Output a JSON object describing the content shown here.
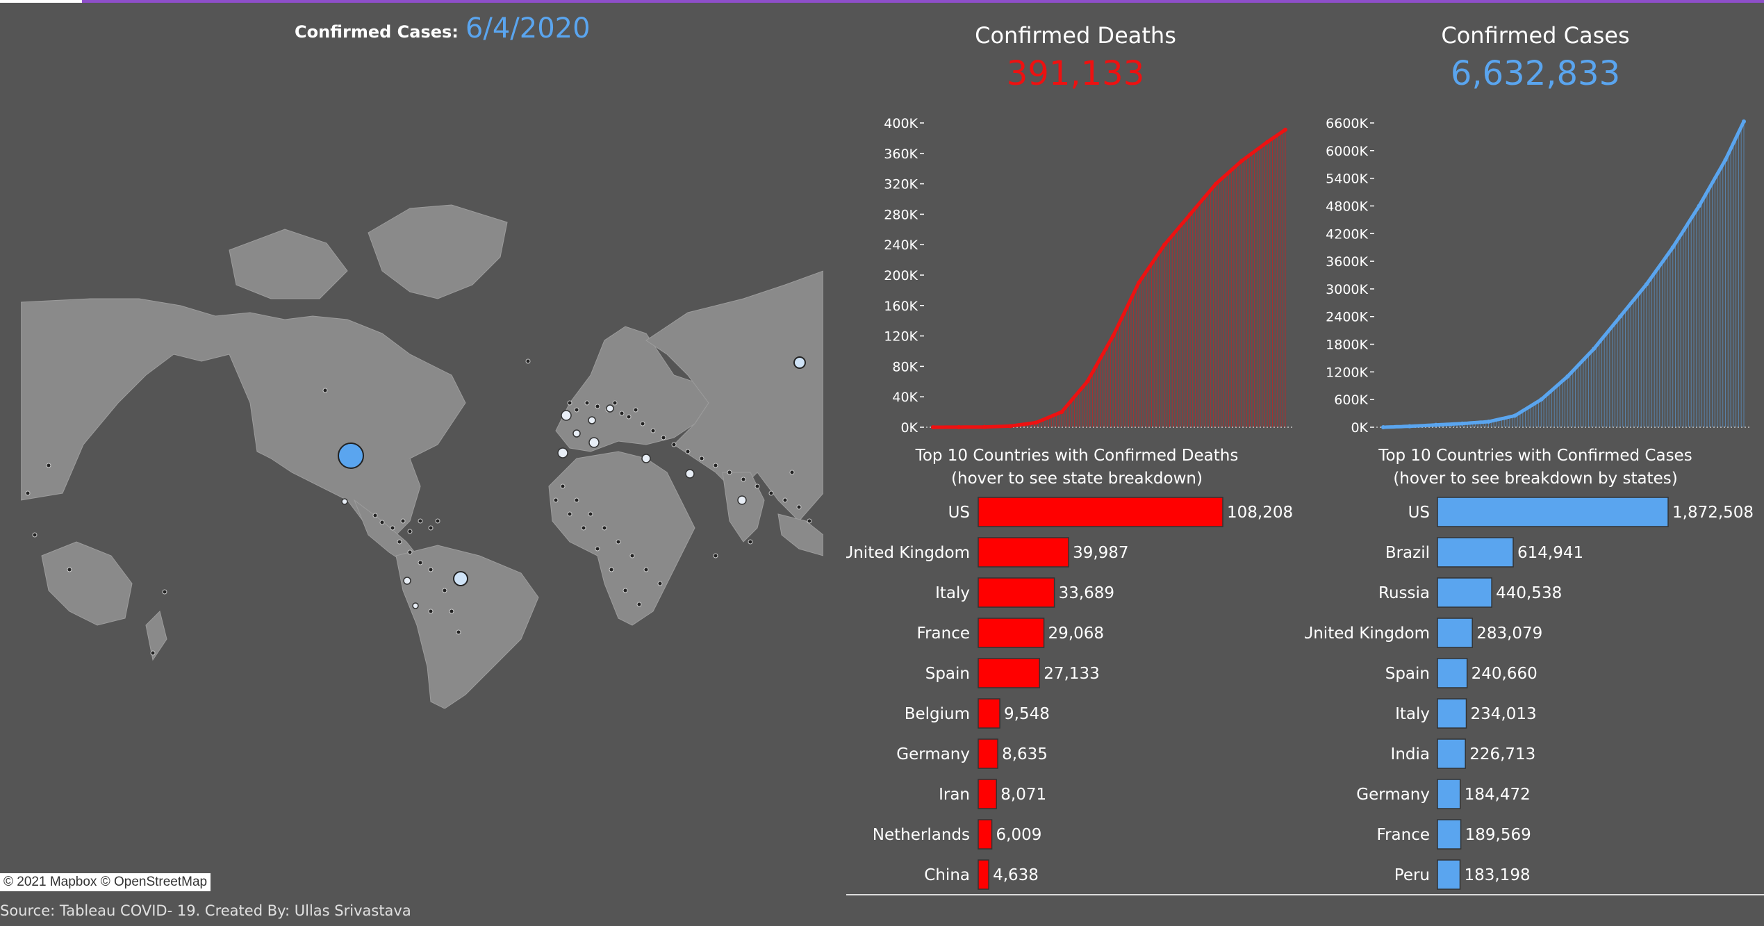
{
  "header": {
    "map_label": "Confirmed Cases:",
    "map_date": "6/4/2020"
  },
  "kpis": {
    "deaths": {
      "title": "Confirmed Deaths",
      "value": "391,133",
      "color": "#ee1111"
    },
    "cases": {
      "title": "Confirmed Cases",
      "value": "6,632,833",
      "color": "#5aa5ef"
    }
  },
  "map": {
    "attribution": "© 2021 Mapbox © OpenStreetMap"
  },
  "footer": {
    "source": "Source: Tableau COVID- 19. Created By: Ullas Srivastava"
  },
  "chart_data": [
    {
      "type": "area",
      "series_color": "#ee1111",
      "y_ticks": [
        "0K",
        "40K",
        "80K",
        "120K",
        "160K",
        "200K",
        "240K",
        "280K",
        "320K",
        "360K",
        "400K"
      ],
      "ylim": [
        0,
        400000
      ],
      "x_index": [
        0,
        10,
        20,
        30,
        40,
        50,
        60,
        70,
        80,
        90,
        100,
        110,
        120,
        130,
        137
      ],
      "y": [
        0,
        100,
        300,
        1500,
        6000,
        20000,
        60000,
        120000,
        190000,
        240000,
        280000,
        320000,
        350000,
        375000,
        391133
      ]
    },
    {
      "type": "area",
      "series_color": "#5aa5ef",
      "y_ticks": [
        "0K",
        "600K",
        "1200K",
        "1800K",
        "2400K",
        "3000K",
        "3600K",
        "4200K",
        "4800K",
        "5400K",
        "6000K",
        "6600K"
      ],
      "ylim": [
        0,
        6600000
      ],
      "x_index": [
        0,
        10,
        20,
        30,
        40,
        50,
        60,
        70,
        80,
        90,
        100,
        110,
        120,
        130,
        137
      ],
      "y": [
        0,
        20000,
        50000,
        80000,
        120000,
        250000,
        600000,
        1100000,
        1700000,
        2400000,
        3100000,
        3900000,
        4800000,
        5800000,
        6632833
      ]
    },
    {
      "type": "bar",
      "orientation": "horizontal",
      "title_line1": "Top 10 Countries with Confirmed Deaths",
      "title_line2": "(hover to see state breakdown)",
      "bar_color": "#ff0000",
      "categories": [
        "US",
        "United Kingdom",
        "Italy",
        "France",
        "Spain",
        "Belgium",
        "Germany",
        "Iran",
        "Netherlands",
        "China"
      ],
      "values": [
        108208,
        39987,
        33689,
        29068,
        27133,
        9548,
        8635,
        8071,
        6009,
        4638
      ],
      "labels": [
        "108,208",
        "39,987",
        "33,689",
        "29,068",
        "27,133",
        "9,548",
        "8,635",
        "8,071",
        "6,009",
        "4,638"
      ]
    },
    {
      "type": "bar",
      "orientation": "horizontal",
      "title_line1": "Top 10 Countries with Confirmed Cases",
      "title_line2": "(hover to see breakdown by states)",
      "bar_color": "#5aa5ef",
      "categories": [
        "US",
        "Brazil",
        "Russia",
        "United Kingdom",
        "Spain",
        "Italy",
        "India",
        "Germany",
        "France",
        "Peru"
      ],
      "values": [
        1872508,
        614941,
        440538,
        283079,
        240660,
        234013,
        226713,
        184472,
        189569,
        183198
      ],
      "labels": [
        "1,872,508",
        "614,941",
        "440,538",
        "283,079",
        "240,660",
        "234,013",
        "226,713",
        "184,472",
        "189,569",
        "183,198"
      ]
    }
  ]
}
